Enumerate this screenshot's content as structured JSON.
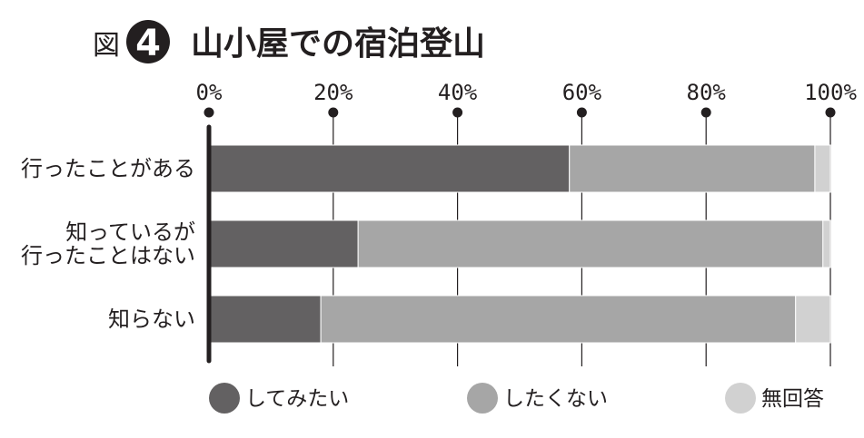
{
  "figure": {
    "prefix": "図",
    "number": "4"
  },
  "chart_data": {
    "type": "bar",
    "orientation": "horizontal",
    "stacked": true,
    "title": "山小屋での宿泊登山",
    "categories": [
      [
        "行ったことがある"
      ],
      [
        "知っているが",
        "行ったことはない"
      ],
      [
        "知らない"
      ]
    ],
    "series": [
      {
        "name": "してみたい",
        "color": "#636162",
        "values": [
          58,
          24,
          18
        ]
      },
      {
        "name": "したくない",
        "color": "#a6a6a6",
        "values": [
          39.5,
          74.8,
          76.4
        ]
      },
      {
        "name": "無回答",
        "color": "#d1d1d1",
        "values": [
          2.5,
          1.2,
          5.6
        ]
      }
    ],
    "xlim": [
      0,
      100
    ],
    "xticks": [
      0,
      20,
      40,
      60,
      80,
      100
    ],
    "xtick_labels": [
      "0%",
      "20%",
      "40%",
      "60%",
      "80%",
      "100%"
    ],
    "grid": true,
    "legend_position": "bottom"
  }
}
